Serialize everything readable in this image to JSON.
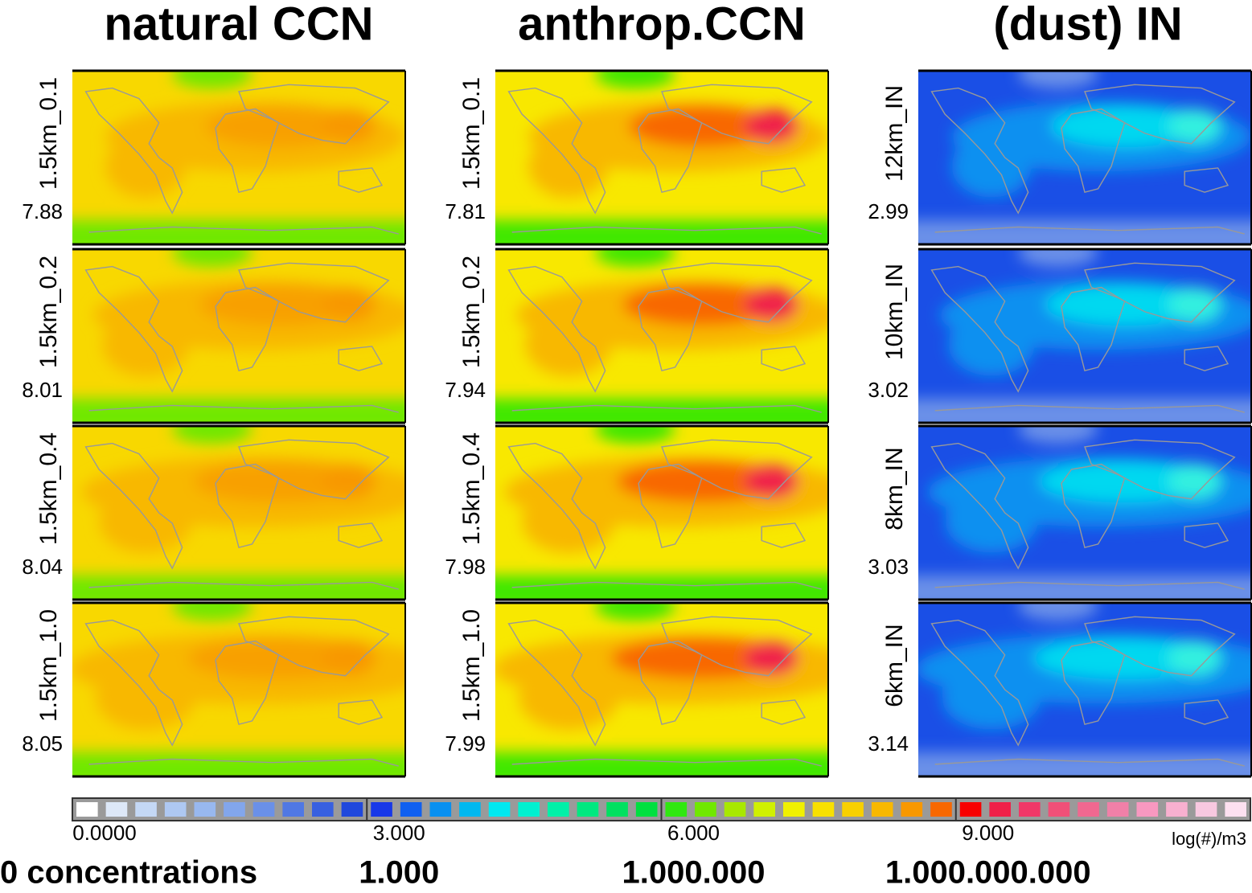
{
  "columns": [
    {
      "title": "natural CCN",
      "panels": [
        {
          "label": "1.5km_0.1",
          "value": 7.88
        },
        {
          "label": "1.5km_0.2",
          "value": 8.01
        },
        {
          "label": "1.5km_0.4",
          "value": 8.04
        },
        {
          "label": "1.5km_1.0",
          "value": 8.05
        }
      ]
    },
    {
      "title": "anthrop.CCN",
      "panels": [
        {
          "label": "1.5km_0.1",
          "value": 7.81
        },
        {
          "label": "1.5km_0.2",
          "value": 7.94
        },
        {
          "label": "1.5km_0.4",
          "value": 7.98
        },
        {
          "label": "1.5km_1.0",
          "value": 7.99
        }
      ]
    },
    {
      "title": "(dust) IN",
      "panels": [
        {
          "label": "12km_IN",
          "value": 2.99
        },
        {
          "label": "10km_IN",
          "value": 3.02
        },
        {
          "label": "8km_IN",
          "value": 3.03
        },
        {
          "label": "6km_IN",
          "value": 3.14
        }
      ]
    }
  ],
  "colorbar": {
    "range": [
      0,
      12
    ],
    "ticks": [
      {
        "value": 0,
        "label": "0.0000"
      },
      {
        "value": 3,
        "label": "3.000"
      },
      {
        "value": 6,
        "label": "6.000"
      },
      {
        "value": 9,
        "label": "9.000"
      }
    ],
    "unit": "log(#)/m3",
    "colors": [
      "#ffffff",
      "#dde8f8",
      "#c4d8f5",
      "#aec8f2",
      "#98b8ef",
      "#82a6ec",
      "#6a90e8",
      "#5078e4",
      "#3860e0",
      "#2048dc",
      "#1838e8",
      "#1060f0",
      "#0890f0",
      "#00b8f0",
      "#00e8f0",
      "#00f0d0",
      "#00f0a8",
      "#00e880",
      "#00e060",
      "#00e040",
      "#30e810",
      "#70e800",
      "#a8e800",
      "#d0f000",
      "#f0f000",
      "#f8e000",
      "#f8d000",
      "#f8b800",
      "#f89800",
      "#f86800",
      "#f80000",
      "#f02048",
      "#f03868",
      "#f05078",
      "#f06890",
      "#f080a8",
      "#f898c0",
      "#f8b0d0",
      "#f8c8e0",
      "#fce0f0"
    ]
  },
  "concentrations": {
    "caption": "0 concentrations",
    "marks": [
      "1.000",
      "1.000.000",
      "1.000.000.000"
    ]
  }
}
